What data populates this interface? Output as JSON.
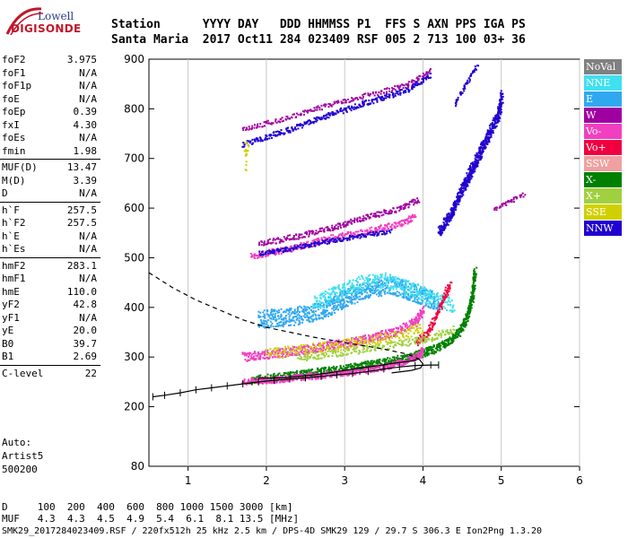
{
  "logo": {
    "line1": "Lowell",
    "line2": "DIGISONDE"
  },
  "header": {
    "row1": "Station      YYYY DAY   DDD HHMMSS P1  FFS S AXN PPS IGA PS",
    "row2": "Santa Maria  2017 Oct11 284 023409 RSF 005 2 713 100 03+ 36"
  },
  "params": [
    [
      {
        "name": "foF2",
        "value": "3.975"
      },
      {
        "name": "foF1",
        "value": "N/A"
      },
      {
        "name": "foF1p",
        "value": "N/A"
      },
      {
        "name": "foE",
        "value": "N/A"
      },
      {
        "name": "foEp",
        "value": "0.39"
      },
      {
        "name": "fxI",
        "value": "4.30"
      },
      {
        "name": "foEs",
        "value": "N/A"
      },
      {
        "name": "fmin",
        "value": "1.98"
      }
    ],
    [
      {
        "name": "MUF(D)",
        "value": "13.47"
      },
      {
        "name": "M(D)",
        "value": "3.39"
      },
      {
        "name": "D",
        "value": "N/A"
      }
    ],
    [
      {
        "name": "h`F",
        "value": "257.5"
      },
      {
        "name": "h`F2",
        "value": "257.5"
      },
      {
        "name": "h`E",
        "value": "N/A"
      },
      {
        "name": "h`Es",
        "value": "N/A"
      }
    ],
    [
      {
        "name": "hmF2",
        "value": "283.1"
      },
      {
        "name": "hmF1",
        "value": "N/A"
      },
      {
        "name": "hmE",
        "value": "110.0"
      },
      {
        "name": "yF2",
        "value": "42.8"
      },
      {
        "name": "yF1",
        "value": "N/A"
      },
      {
        "name": "yE",
        "value": "20.0"
      },
      {
        "name": "B0",
        "value": "39.7"
      },
      {
        "name": "B1",
        "value": "2.69"
      }
    ],
    [
      {
        "name": "C-level",
        "value": "22"
      }
    ]
  ],
  "auto": {
    "line1": "Auto:",
    "line2": "Artist5",
    "line3": "500200"
  },
  "legend": [
    {
      "label": "NoVal",
      "color": "#808080"
    },
    {
      "label": "NNE",
      "color": "#40e0f0"
    },
    {
      "label": "E",
      "color": "#30a8f0"
    },
    {
      "label": "W",
      "color": "#a000a0"
    },
    {
      "label": "Vo-",
      "color": "#f040c0"
    },
    {
      "label": "Vo+",
      "color": "#f00040"
    },
    {
      "label": "SSW",
      "color": "#f0a0a0"
    },
    {
      "label": "X-",
      "color": "#008000"
    },
    {
      "label": "X+",
      "color": "#a0d040"
    },
    {
      "label": "SSE",
      "color": "#d0d000"
    },
    {
      "label": "NNW",
      "color": "#2000d0"
    }
  ],
  "footer": {
    "d_row": "D     100  200  400  600  800 1000 1500 3000 [km]",
    "muf_row": "MUF   4.3  4.3  4.5  4.9  5.4  6.1  8.1 13.5 [MHz]",
    "file_row": "SMK29_2017284023409.RSF / 220fx512h 25 kHz 2.5 km / DPS-4D SMK29 129 / 29.7 S 306.3 E Ion2Png 1.3.20"
  },
  "chart_data": {
    "type": "scatter",
    "xlim": [
      0.5,
      6.0
    ],
    "ylim": [
      80,
      900
    ],
    "x_ticks": [
      "1",
      "2",
      "3",
      "4",
      "5",
      "6"
    ],
    "y_ticks": [
      "200",
      "300",
      "400",
      "500",
      "600",
      "700",
      "800",
      "900"
    ],
    "y_tick_values": [
      200,
      300,
      400,
      500,
      600,
      700,
      800,
      900
    ],
    "y_bottom_label": "80",
    "x_gridlines": [
      1,
      2,
      3,
      4,
      5,
      6
    ],
    "profile_dashed": [
      [
        0.5,
        470
      ],
      [
        0.8,
        440
      ],
      [
        1.1,
        415
      ],
      [
        1.4,
        395
      ],
      [
        1.7,
        375
      ],
      [
        2.0,
        360
      ],
      [
        2.3,
        350
      ],
      [
        2.6,
        340
      ],
      [
        2.9,
        332
      ],
      [
        3.2,
        324
      ],
      [
        3.5,
        316
      ],
      [
        3.8,
        306
      ],
      [
        3.95,
        296
      ]
    ],
    "profile_solid": [
      [
        3.95,
        296
      ],
      [
        3.85,
        292
      ],
      [
        3.6,
        287
      ],
      [
        3.4,
        282
      ],
      [
        3.2,
        278
      ],
      [
        3.0,
        273
      ],
      [
        2.8,
        268
      ],
      [
        2.6,
        264
      ],
      [
        2.4,
        261
      ],
      [
        2.2,
        258
      ],
      [
        2.0,
        257.5
      ],
      [
        1.9,
        257.5
      ]
    ],
    "trace_solid_tail": [
      [
        3.95,
        296
      ],
      [
        4.0,
        286
      ],
      [
        3.97,
        278
      ],
      [
        3.85,
        273
      ],
      [
        3.6,
        268
      ]
    ],
    "virtual_height_trace": [
      [
        0.55,
        220
      ],
      [
        0.7,
        223
      ],
      [
        0.9,
        228
      ],
      [
        1.1,
        234
      ],
      [
        1.3,
        238
      ],
      [
        1.5,
        242
      ],
      [
        1.7,
        246
      ],
      [
        1.9,
        250
      ],
      [
        2.1,
        253
      ],
      [
        2.3,
        256
      ],
      [
        2.5,
        258
      ],
      [
        2.7,
        261
      ],
      [
        2.9,
        264
      ],
      [
        3.1,
        267
      ],
      [
        3.3,
        271
      ],
      [
        3.5,
        276
      ],
      [
        3.7,
        280
      ],
      [
        3.9,
        283
      ],
      [
        4.1,
        284
      ],
      [
        4.2,
        284
      ]
    ],
    "trace_error_bars": true,
    "echo_bands": [
      {
        "series": "X-",
        "points": [
          [
            1.8,
            255
          ],
          [
            2.2,
            262
          ],
          [
            2.6,
            270
          ],
          [
            3.0,
            278
          ],
          [
            3.4,
            288
          ],
          [
            3.8,
            300
          ],
          [
            4.1,
            315
          ],
          [
            4.3,
            330
          ],
          [
            4.45,
            350
          ],
          [
            4.55,
            380
          ],
          [
            4.62,
            420
          ],
          [
            4.66,
            480
          ]
        ],
        "spread": 9,
        "density": 7
      },
      {
        "series": "Vo-",
        "points": [
          [
            1.7,
            252
          ],
          [
            2.1,
            256
          ],
          [
            2.5,
            262
          ],
          [
            2.9,
            268
          ],
          [
            3.3,
            276
          ],
          [
            3.6,
            285
          ],
          [
            3.8,
            295
          ],
          [
            3.95,
            305
          ],
          [
            4.0,
            320
          ]
        ],
        "spread": 7,
        "density": 6
      },
      {
        "series": "Vo-",
        "points": [
          [
            1.7,
            302
          ],
          [
            2.2,
            310
          ],
          [
            2.7,
            322
          ],
          [
            3.2,
            335
          ],
          [
            3.6,
            350
          ],
          [
            3.9,
            372
          ],
          [
            4.0,
            400
          ]
        ],
        "spread": 10,
        "density": 6
      },
      {
        "series": "SSE",
        "points": [
          [
            2.0,
            308
          ],
          [
            2.6,
            318
          ],
          [
            3.2,
            332
          ],
          [
            3.7,
            345
          ],
          [
            4.0,
            360
          ]
        ],
        "spread": 12,
        "density": 3
      },
      {
        "series": "E",
        "points": [
          [
            1.9,
            378
          ],
          [
            2.3,
            382
          ],
          [
            2.7,
            395
          ],
          [
            3.0,
            420
          ],
          [
            3.3,
            440
          ],
          [
            3.6,
            445
          ],
          [
            3.9,
            430
          ],
          [
            4.2,
            410
          ]
        ],
        "spread": 20,
        "density": 9
      },
      {
        "series": "NNE",
        "points": [
          [
            2.6,
            410
          ],
          [
            2.9,
            430
          ],
          [
            3.2,
            450
          ],
          [
            3.5,
            455
          ],
          [
            3.8,
            440
          ],
          [
            4.1,
            420
          ],
          [
            4.4,
            405
          ]
        ],
        "spread": 18,
        "density": 5
      },
      {
        "series": "Vo+",
        "points": [
          [
            3.9,
            330
          ],
          [
            4.05,
            350
          ],
          [
            4.15,
            380
          ],
          [
            4.25,
            420
          ],
          [
            4.35,
            450
          ]
        ],
        "spread": 10,
        "density": 4
      },
      {
        "series": "X+",
        "points": [
          [
            2.4,
            300
          ],
          [
            3.0,
            312
          ],
          [
            3.6,
            325
          ],
          [
            4.1,
            340
          ],
          [
            4.4,
            360
          ]
        ],
        "spread": 8,
        "density": 3
      },
      {
        "series": "Vo-",
        "points": [
          [
            1.8,
            505
          ],
          [
            2.3,
            520
          ],
          [
            2.8,
            540
          ],
          [
            3.3,
            555
          ],
          [
            3.7,
            570
          ],
          [
            3.9,
            585
          ]
        ],
        "spread": 7,
        "density": 4
      },
      {
        "series": "W",
        "points": [
          [
            1.9,
            530
          ],
          [
            2.4,
            545
          ],
          [
            2.9,
            565
          ],
          [
            3.3,
            585
          ],
          [
            3.7,
            600
          ],
          [
            3.95,
            620
          ]
        ],
        "spread": 6,
        "density": 3
      },
      {
        "series": "NNW",
        "points": [
          [
            1.9,
            510
          ],
          [
            2.3,
            520
          ],
          [
            2.8,
            535
          ],
          [
            3.3,
            548
          ],
          [
            3.6,
            555
          ]
        ],
        "spread": 5,
        "density": 3
      },
      {
        "series": "NNW",
        "points": [
          [
            4.2,
            555
          ],
          [
            4.35,
            590
          ],
          [
            4.5,
            640
          ],
          [
            4.65,
            690
          ],
          [
            4.8,
            740
          ],
          [
            4.95,
            785
          ],
          [
            5.0,
            830
          ]
        ],
        "spread": 14,
        "density": 8
      },
      {
        "series": "NNW",
        "points": [
          [
            1.7,
            730
          ],
          [
            2.3,
            760
          ],
          [
            2.8,
            790
          ],
          [
            3.3,
            815
          ],
          [
            3.8,
            840
          ],
          [
            4.1,
            870
          ]
        ],
        "spread": 6,
        "density": 3
      },
      {
        "series": "W",
        "points": [
          [
            1.7,
            760
          ],
          [
            2.3,
            785
          ],
          [
            2.8,
            810
          ],
          [
            3.3,
            830
          ],
          [
            3.8,
            850
          ],
          [
            4.1,
            880
          ]
        ],
        "spread": 5,
        "density": 2
      },
      {
        "series": "NNW",
        "points": [
          [
            4.4,
            810
          ],
          [
            4.5,
            840
          ],
          [
            4.6,
            870
          ],
          [
            4.7,
            890
          ]
        ],
        "spread": 5,
        "density": 2
      },
      {
        "series": "W",
        "points": [
          [
            4.9,
            600
          ],
          [
            5.1,
            615
          ],
          [
            5.3,
            630
          ]
        ],
        "spread": 4,
        "density": 2
      },
      {
        "series": "SSE",
        "points": [
          [
            1.72,
            690
          ],
          [
            1.75,
            740
          ]
        ],
        "spread": 20,
        "density": 2
      }
    ]
  }
}
